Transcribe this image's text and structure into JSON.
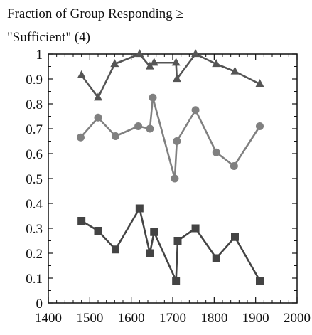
{
  "chart_data": {
    "type": "line",
    "title_line1": "Fraction of Group Responding ≥",
    "title_line2": "\"Sufficient\" (4)",
    "xlabel": "",
    "ylabel": "",
    "xlim": [
      1400,
      2000
    ],
    "ylim": [
      0,
      1
    ],
    "x_ticks": [
      1400,
      1500,
      1600,
      1700,
      1800,
      1900,
      2000
    ],
    "y_ticks": [
      0,
      0.1,
      0.2,
      0.3,
      0.4,
      0.5,
      0.6,
      0.7,
      0.8,
      0.9,
      1
    ],
    "y_tick_labels": [
      "0",
      "0.1",
      "0.2",
      "0.3",
      "0.4",
      "0.5",
      "0.6",
      "0.7",
      "0.8",
      "0.9",
      "1"
    ],
    "grid": false,
    "legend": "none",
    "series": [
      {
        "marker": "triangle",
        "color": "#555555",
        "x": [
          1480,
          1520,
          1560,
          1620,
          1645,
          1655,
          1708,
          1710,
          1755,
          1805,
          1850,
          1910
        ],
        "y": [
          0.915,
          0.825,
          0.96,
          1.0,
          0.95,
          0.965,
          0.965,
          0.9,
          1.0,
          0.96,
          0.93,
          0.88
        ]
      },
      {
        "marker": "circle",
        "color": "#808080",
        "x": [
          1478,
          1520,
          1562,
          1617,
          1645,
          1652,
          1705,
          1710,
          1755,
          1805,
          1848,
          1910
        ],
        "y": [
          0.665,
          0.745,
          0.67,
          0.71,
          0.7,
          0.825,
          0.5,
          0.65,
          0.775,
          0.605,
          0.55,
          0.71
        ]
      },
      {
        "marker": "square",
        "color": "#444444",
        "x": [
          1480,
          1520,
          1562,
          1620,
          1645,
          1655,
          1708,
          1712,
          1755,
          1805,
          1850,
          1910
        ],
        "y": [
          0.33,
          0.29,
          0.215,
          0.38,
          0.2,
          0.285,
          0.09,
          0.25,
          0.3,
          0.18,
          0.265,
          0.09
        ]
      }
    ]
  }
}
